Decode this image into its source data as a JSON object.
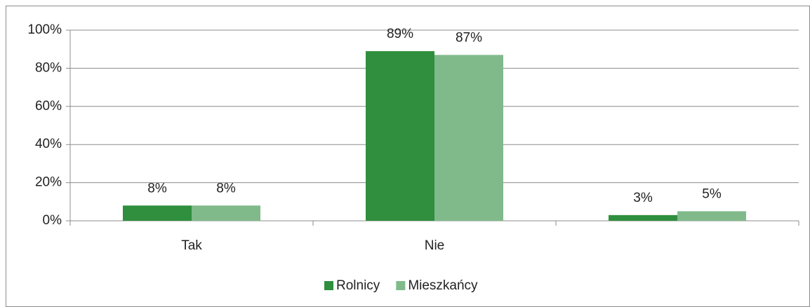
{
  "chart_data": {
    "type": "bar",
    "categories": [
      "Tak",
      "Nie",
      null
    ],
    "series": [
      {
        "name": "Rolnicy",
        "color": "#2f8f3e",
        "values": [
          8,
          89,
          3
        ],
        "value_labels": [
          "8%",
          "89%",
          "3%"
        ]
      },
      {
        "name": "Mieszkańcy",
        "color": "#80ba8b",
        "values": [
          8,
          87,
          5
        ],
        "value_labels": [
          "8%",
          "87%",
          "5%"
        ]
      }
    ],
    "ylim": [
      0,
      100
    ],
    "yticks": [
      {
        "value": 0,
        "label": "0%"
      },
      {
        "value": 20,
        "label": "20%"
      },
      {
        "value": 40,
        "label": "40%"
      },
      {
        "value": 60,
        "label": "60%"
      },
      {
        "value": 80,
        "label": "80%"
      },
      {
        "value": 100,
        "label": "100%"
      }
    ],
    "grid": true,
    "legend": "bottom"
  }
}
